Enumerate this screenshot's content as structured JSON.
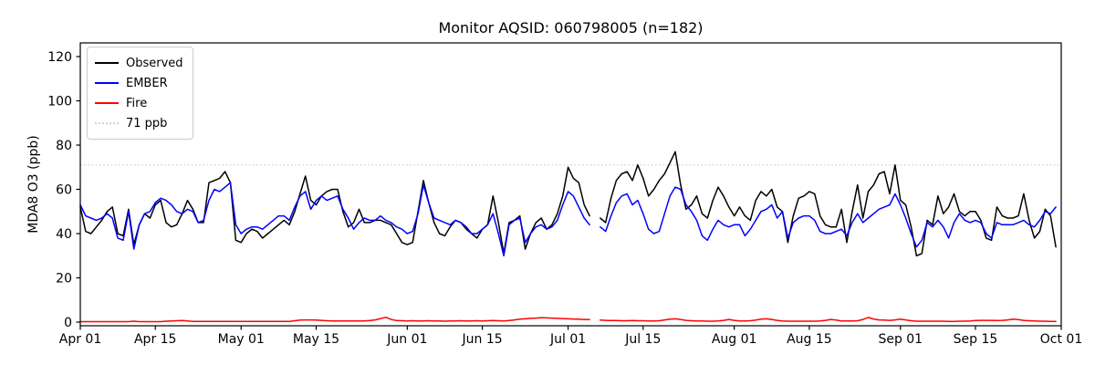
{
  "chart_data": {
    "type": "line",
    "title": "Monitor AQSID: 060798005 (n=182)",
    "ylabel": "MDA8 O3 (ppb)",
    "xlabel": "",
    "n_points": 182,
    "grid": false,
    "legend_position": "upper left",
    "ylim": [
      0,
      126
    ],
    "y_axis": {
      "tick_values": [
        0,
        20,
        40,
        60,
        80,
        100,
        120
      ]
    },
    "x_axis": {
      "tick_labels": [
        "Apr 01",
        "Apr 15",
        "May 01",
        "May 15",
        "Jun 01",
        "Jun 15",
        "Jul 01",
        "Jul 15",
        "Aug 01",
        "Aug 15",
        "Sep 01",
        "Sep 15",
        "Oct 01"
      ],
      "tick_days": [
        0,
        14,
        30,
        44,
        61,
        75,
        91,
        105,
        122,
        136,
        153,
        167,
        183
      ],
      "start_date": "Apr 01",
      "end_date": "Oct 01",
      "total_days": 183
    },
    "threshold": {
      "value": 71,
      "label": "71 ppb",
      "color": "#d3d3d3",
      "style": "dotted"
    },
    "missing_day_index": 96,
    "series": [
      {
        "name": "Observed",
        "color": "#000000",
        "values": [
          52,
          41,
          40,
          43,
          46,
          50,
          52,
          40,
          39,
          51,
          35,
          44,
          49,
          47,
          53,
          55,
          45,
          43,
          44,
          49,
          55,
          51,
          45,
          45,
          63,
          64,
          65,
          68,
          63,
          37,
          36,
          40,
          42,
          41,
          38,
          40,
          42,
          44,
          46,
          44,
          50,
          58,
          66,
          55,
          53,
          57,
          59,
          60,
          60,
          50,
          43,
          45,
          51,
          45,
          45,
          46,
          46,
          45,
          44,
          40,
          36,
          35,
          36,
          50,
          64,
          54,
          45,
          40,
          39,
          43,
          46,
          45,
          42,
          40,
          38,
          42,
          44,
          57,
          45,
          31,
          45,
          46,
          48,
          33,
          40,
          45,
          47,
          42,
          44,
          49,
          57,
          70,
          65,
          63,
          53,
          48,
          null,
          47,
          45,
          56,
          64,
          67,
          68,
          64,
          71,
          65,
          57,
          60,
          64,
          67,
          72,
          77,
          62,
          51,
          53,
          57,
          49,
          47,
          55,
          61,
          57,
          52,
          48,
          52,
          48,
          46,
          55,
          59,
          57,
          60,
          52,
          50,
          36,
          48,
          56,
          57,
          59,
          58,
          48,
          44,
          43,
          43,
          51,
          36,
          50,
          62,
          47,
          59,
          62,
          67,
          68,
          58,
          71,
          55,
          53,
          43,
          30,
          31,
          46,
          44,
          57,
          49,
          52,
          58,
          50,
          48,
          50,
          50,
          46,
          38,
          37,
          52,
          48,
          47,
          47,
          48,
          58,
          46,
          38,
          41,
          51,
          48,
          34
        ]
      },
      {
        "name": "EMBER",
        "color": "#0000ff",
        "values": [
          53,
          48,
          47,
          46,
          47,
          49,
          47,
          38,
          37,
          50,
          33,
          44,
          49,
          50,
          54,
          56,
          55,
          53,
          50,
          49,
          51,
          50,
          45,
          46,
          55,
          60,
          59,
          61,
          63,
          44,
          40,
          42,
          43,
          43,
          42,
          44,
          46,
          48,
          48,
          46,
          52,
          57,
          59,
          51,
          55,
          57,
          55,
          56,
          57,
          51,
          47,
          42,
          45,
          47,
          46,
          46,
          48,
          46,
          45,
          43,
          42,
          40,
          41,
          49,
          62,
          54,
          47,
          46,
          45,
          44,
          46,
          45,
          43,
          40,
          40,
          42,
          44,
          49,
          40,
          30,
          44,
          46,
          47,
          36,
          40,
          43,
          44,
          42,
          43,
          46,
          53,
          59,
          57,
          52,
          47,
          44,
          null,
          43,
          41,
          48,
          54,
          57,
          58,
          53,
          55,
          49,
          42,
          40,
          41,
          49,
          57,
          61,
          60,
          53,
          50,
          46,
          39,
          37,
          42,
          46,
          44,
          43,
          44,
          44,
          39,
          42,
          46,
          50,
          51,
          53,
          47,
          50,
          38,
          45,
          47,
          48,
          48,
          46,
          41,
          40,
          40,
          41,
          42,
          39,
          45,
          49,
          45,
          47,
          49,
          51,
          52,
          53,
          58,
          53,
          47,
          40,
          34,
          37,
          45,
          43,
          46,
          43,
          38,
          45,
          49,
          46,
          45,
          46,
          45,
          40,
          38,
          45,
          44,
          44,
          44,
          45,
          46,
          44,
          43,
          46,
          50,
          49,
          52
        ]
      },
      {
        "name": "Fire",
        "color": "#ff0000",
        "values": [
          0.2,
          0.2,
          0.2,
          0.2,
          0.2,
          0.2,
          0.2,
          0.2,
          0.2,
          0.2,
          0.4,
          0.2,
          0.2,
          0.2,
          0.2,
          0.2,
          0.4,
          0.5,
          0.6,
          0.7,
          0.5,
          0.3,
          0.3,
          0.3,
          0.3,
          0.3,
          0.3,
          0.3,
          0.3,
          0.3,
          0.3,
          0.3,
          0.3,
          0.3,
          0.3,
          0.3,
          0.3,
          0.3,
          0.3,
          0.3,
          0.6,
          0.9,
          1.0,
          1.0,
          0.9,
          0.8,
          0.6,
          0.5,
          0.5,
          0.5,
          0.5,
          0.5,
          0.5,
          0.5,
          0.7,
          1.0,
          1.6,
          2.2,
          1.2,
          0.7,
          0.6,
          0.5,
          0.6,
          0.5,
          0.5,
          0.6,
          0.5,
          0.5,
          0.4,
          0.5,
          0.5,
          0.6,
          0.5,
          0.5,
          0.6,
          0.5,
          0.6,
          0.7,
          0.6,
          0.5,
          0.7,
          1.0,
          1.3,
          1.5,
          1.7,
          1.8,
          2.0,
          1.9,
          1.8,
          1.7,
          1.6,
          1.5,
          1.4,
          1.3,
          1.2,
          1.1,
          null,
          0.9,
          0.8,
          0.7,
          0.7,
          0.6,
          0.6,
          0.7,
          0.6,
          0.6,
          0.5,
          0.5,
          0.6,
          1.0,
          1.3,
          1.5,
          1.2,
          0.8,
          0.6,
          0.5,
          0.5,
          0.4,
          0.4,
          0.5,
          0.8,
          1.2,
          0.8,
          0.5,
          0.5,
          0.6,
          0.9,
          1.3,
          1.5,
          1.2,
          0.8,
          0.5,
          0.4,
          0.4,
          0.4,
          0.4,
          0.4,
          0.4,
          0.5,
          0.8,
          1.2,
          0.9,
          0.5,
          0.5,
          0.5,
          0.6,
          1.2,
          2.1,
          1.4,
          1.0,
          0.9,
          0.8,
          1.0,
          1.3,
          1.0,
          0.6,
          0.4,
          0.4,
          0.4,
          0.4,
          0.4,
          0.4,
          0.3,
          0.3,
          0.4,
          0.4,
          0.5,
          0.7,
          0.8,
          0.8,
          0.8,
          0.7,
          0.8,
          1.0,
          1.3,
          1.1,
          0.8,
          0.6,
          0.5,
          0.4,
          0.4,
          0.3,
          0.3
        ]
      }
    ]
  }
}
